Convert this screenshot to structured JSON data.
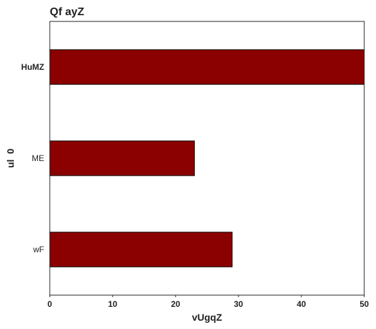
{
  "chart_data": {
    "type": "bar",
    "orientation": "horizontal",
    "title": "Qf ayZ",
    "xlabel": "vUgqZ",
    "ylabel": "ul  0",
    "categories": [
      "HuMZ",
      "ME",
      "wF"
    ],
    "values": [
      50,
      23,
      29
    ],
    "xlim": [
      0,
      50
    ],
    "xticks": [
      0,
      10,
      20,
      30,
      40,
      50
    ],
    "grid": false,
    "bar_color": "#8b0000",
    "edge_color": "#000000"
  }
}
